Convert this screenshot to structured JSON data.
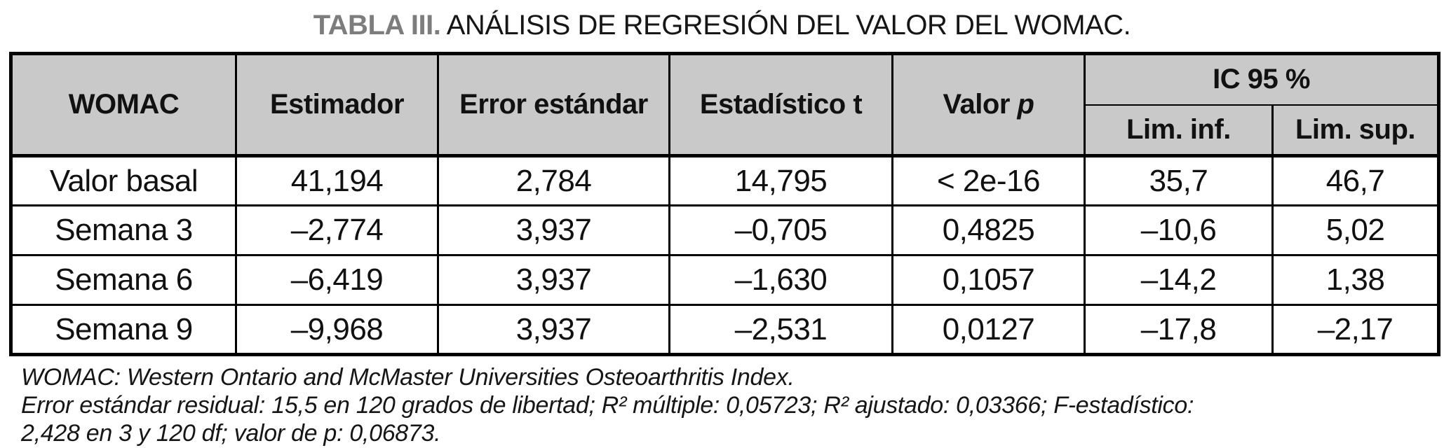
{
  "title": {
    "label": "TABLA III.",
    "text": "ANÁLISIS DE REGRESIÓN DEL VALOR DEL WOMAC."
  },
  "table": {
    "headers": {
      "womac": "WOMAC",
      "estimador": "Estimador",
      "error_estandar": "Error estándar",
      "estadistico_t": "Estadístico t",
      "valor_p_prefix": "Valor",
      "valor_p_var": "p",
      "ic95": "IC 95 %",
      "lim_inf": "Lim. inf.",
      "lim_sup": "Lim. sup."
    },
    "rows": [
      {
        "womac": "Valor basal",
        "estimador": "41,194",
        "error_estandar": "2,784",
        "estadistico_t": "14,795",
        "valor_p": "< 2e-16",
        "lim_inf": "35,7",
        "lim_sup": "46,7"
      },
      {
        "womac": "Semana 3",
        "estimador": "–2,774",
        "error_estandar": "3,937",
        "estadistico_t": "–0,705",
        "valor_p": "0,4825",
        "lim_inf": "–10,6",
        "lim_sup": "5,02"
      },
      {
        "womac": "Semana 6",
        "estimador": "–6,419",
        "error_estandar": "3,937",
        "estadistico_t": "–1,630",
        "valor_p": "0,1057",
        "lim_inf": "–14,2",
        "lim_sup": "1,38"
      },
      {
        "womac": "Semana 9",
        "estimador": "–9,968",
        "error_estandar": "3,937",
        "estadistico_t": "–2,531",
        "valor_p": "0,0127",
        "lim_inf": "–17,8",
        "lim_sup": "–2,17"
      }
    ]
  },
  "footnotes": {
    "line1": "WOMAC: Western Ontario and McMaster Universities Osteoarthritis Index.",
    "line2": "Error estándar residual: 15,5 en 120 grados de libertad; R² múltiple: 0,05723; R² ajustado: 0,03366; F-estadístico:",
    "line3": "2,428 en 3 y 120 df; valor de p: 0,06873."
  },
  "colors": {
    "header_bg": "#c9c9c9",
    "title_label": "#7d7d7d",
    "text": "#161616",
    "border": "#000000"
  }
}
